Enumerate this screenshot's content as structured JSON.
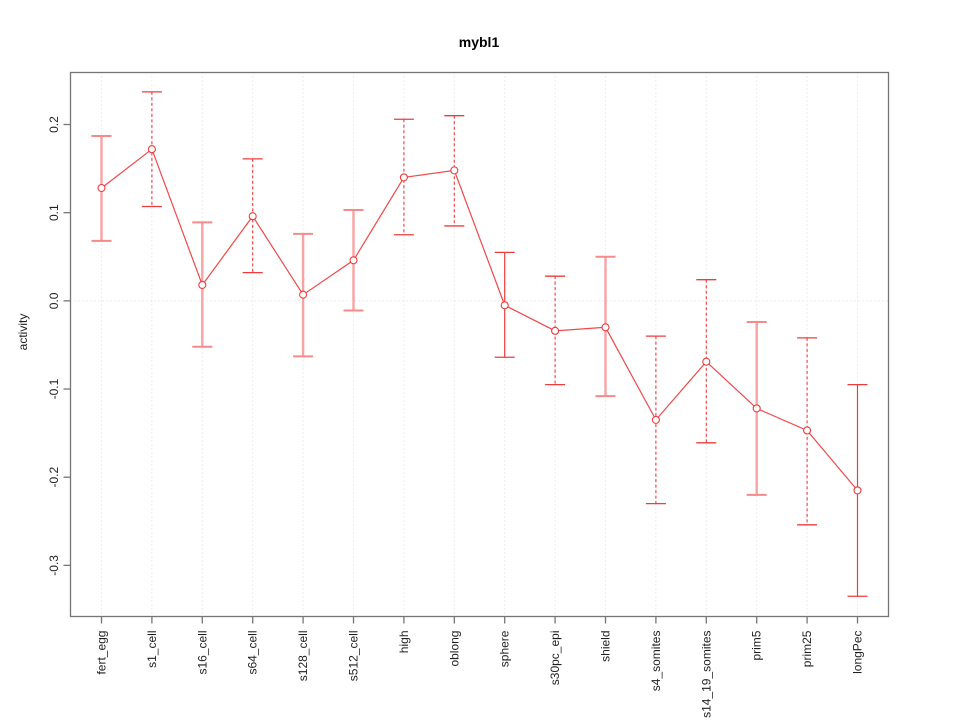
{
  "figure": {
    "title": "mybl1",
    "ylabel": "activity"
  },
  "chart_data": {
    "type": "line",
    "title": "mybl1",
    "xlabel": "",
    "ylabel": "activity",
    "categories": [
      "fert_egg",
      "s1_cell",
      "s16_cell",
      "s64_cell",
      "s128_cell",
      "s512_cell",
      "high",
      "oblong",
      "sphere",
      "s30pc_epi",
      "shield",
      "s4_somites",
      "s14_19_somites",
      "prim5",
      "prim25",
      "longPec"
    ],
    "series": [
      {
        "name": "mybl1 activity",
        "values": [
          0.128,
          0.172,
          0.018,
          0.096,
          0.007,
          0.046,
          0.14,
          0.148,
          -0.005,
          -0.034,
          -0.03,
          -0.135,
          -0.069,
          -0.122,
          -0.147,
          -0.215
        ],
        "ci_upper": [
          0.187,
          0.237,
          0.089,
          0.161,
          0.076,
          0.103,
          0.206,
          0.21,
          0.055,
          0.028,
          0.05,
          -0.04,
          0.024,
          -0.024,
          -0.042,
          -0.095
        ],
        "ci_lower": [
          0.068,
          0.107,
          -0.052,
          0.032,
          -0.063,
          -0.011,
          0.075,
          0.085,
          -0.064,
          -0.095,
          -0.108,
          -0.23,
          -0.161,
          -0.22,
          -0.254,
          -0.335
        ]
      }
    ],
    "error_bar_styles": [
      "pink",
      "red-dashed",
      "pink",
      "red-dashed",
      "pink",
      "pink",
      "red-dashed",
      "red-dashed",
      "red-solid",
      "red-dashed",
      "pink",
      "red-dashed",
      "red-dashed",
      "pink",
      "red-dashed",
      "red-solid"
    ],
    "ylim": [
      -0.358,
      0.259
    ],
    "ytick_values": [
      0.2,
      0.1,
      0.0,
      -0.1,
      -0.2,
      -0.3
    ],
    "ytick_labels": [
      "0.2",
      "0.1",
      "0.0",
      "-0.1",
      "-0.2",
      "-0.3"
    ],
    "grid": {
      "vertical": "each-category",
      "horizontal_at": 0,
      "style": "dotted"
    },
    "legend": {
      "show": false
    },
    "marker": {
      "shape": "open-circle",
      "radius": 3.5
    },
    "colors": {
      "point": "#EE3C3C",
      "line": "#F04848",
      "error_red": "#EE3C3C",
      "error_pink": "#F9A2A2",
      "error_cap_pink": "#F58A8A",
      "frame": "#757575",
      "grid": "#DBDBDB",
      "text": "#1F1F1F",
      "title": "#000000"
    }
  }
}
